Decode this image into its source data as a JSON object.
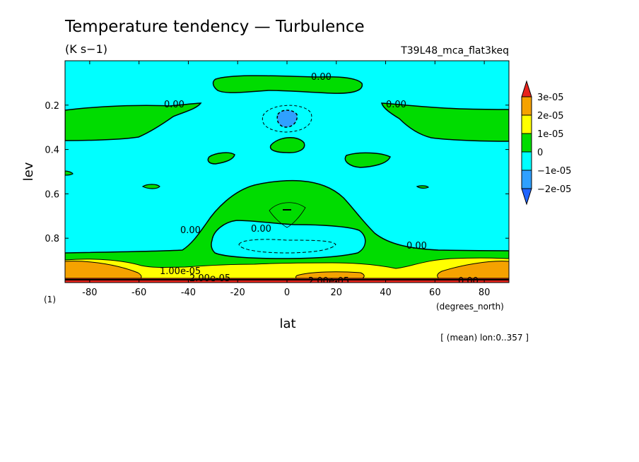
{
  "chart_data": {
    "type": "contour",
    "title": "Temperature tendency — Turbulence",
    "units": "(K s−1)",
    "run_label": "T39L48_mca_flat3keq",
    "xlabel": "lat",
    "xunits": "(degrees_north)",
    "ylabel": "lev",
    "yunits": "(1)",
    "footnote": "[ (mean) lon:0..357 ]",
    "xlim": [
      -90,
      90
    ],
    "ylim": [
      1.0,
      0.0
    ],
    "y_reversed": true,
    "x_ticks": [
      "-80",
      "-60",
      "-40",
      "-20",
      "0",
      "20",
      "40",
      "60",
      "80"
    ],
    "x_tick_values": [
      -80,
      -60,
      -40,
      -20,
      0,
      20,
      40,
      60,
      80
    ],
    "y_ticks": [
      "0.2",
      "0.4",
      "0.6",
      "0.8"
    ],
    "y_tick_values": [
      0.2,
      0.4,
      0.6,
      0.8
    ],
    "colorbar": {
      "levels": [
        "3e-05",
        "2e-05",
        "1e-05",
        "0",
        "−1e-05",
        "−2e-05"
      ],
      "colors": [
        "#e8241c",
        "#f5a200",
        "#ffff00",
        "#00dc00",
        "#00ffff",
        "#2fa0ff",
        "#1e64ff"
      ]
    },
    "contour_labels": [
      "0.00",
      "0.00",
      "0.00",
      "0.00",
      "0.00",
      "0.00",
      "0.00",
      "1.00e-05",
      "2.00e-05",
      "2.00e-05"
    ],
    "colors": {
      "fill_pos3": "#e8241c",
      "fill_pos2": "#f5a200",
      "fill_pos1": "#ffff00",
      "fill_zero": "#00dc00",
      "fill_neg1": "#00ffff",
      "fill_neg2": "#2fa0ff"
    }
  }
}
